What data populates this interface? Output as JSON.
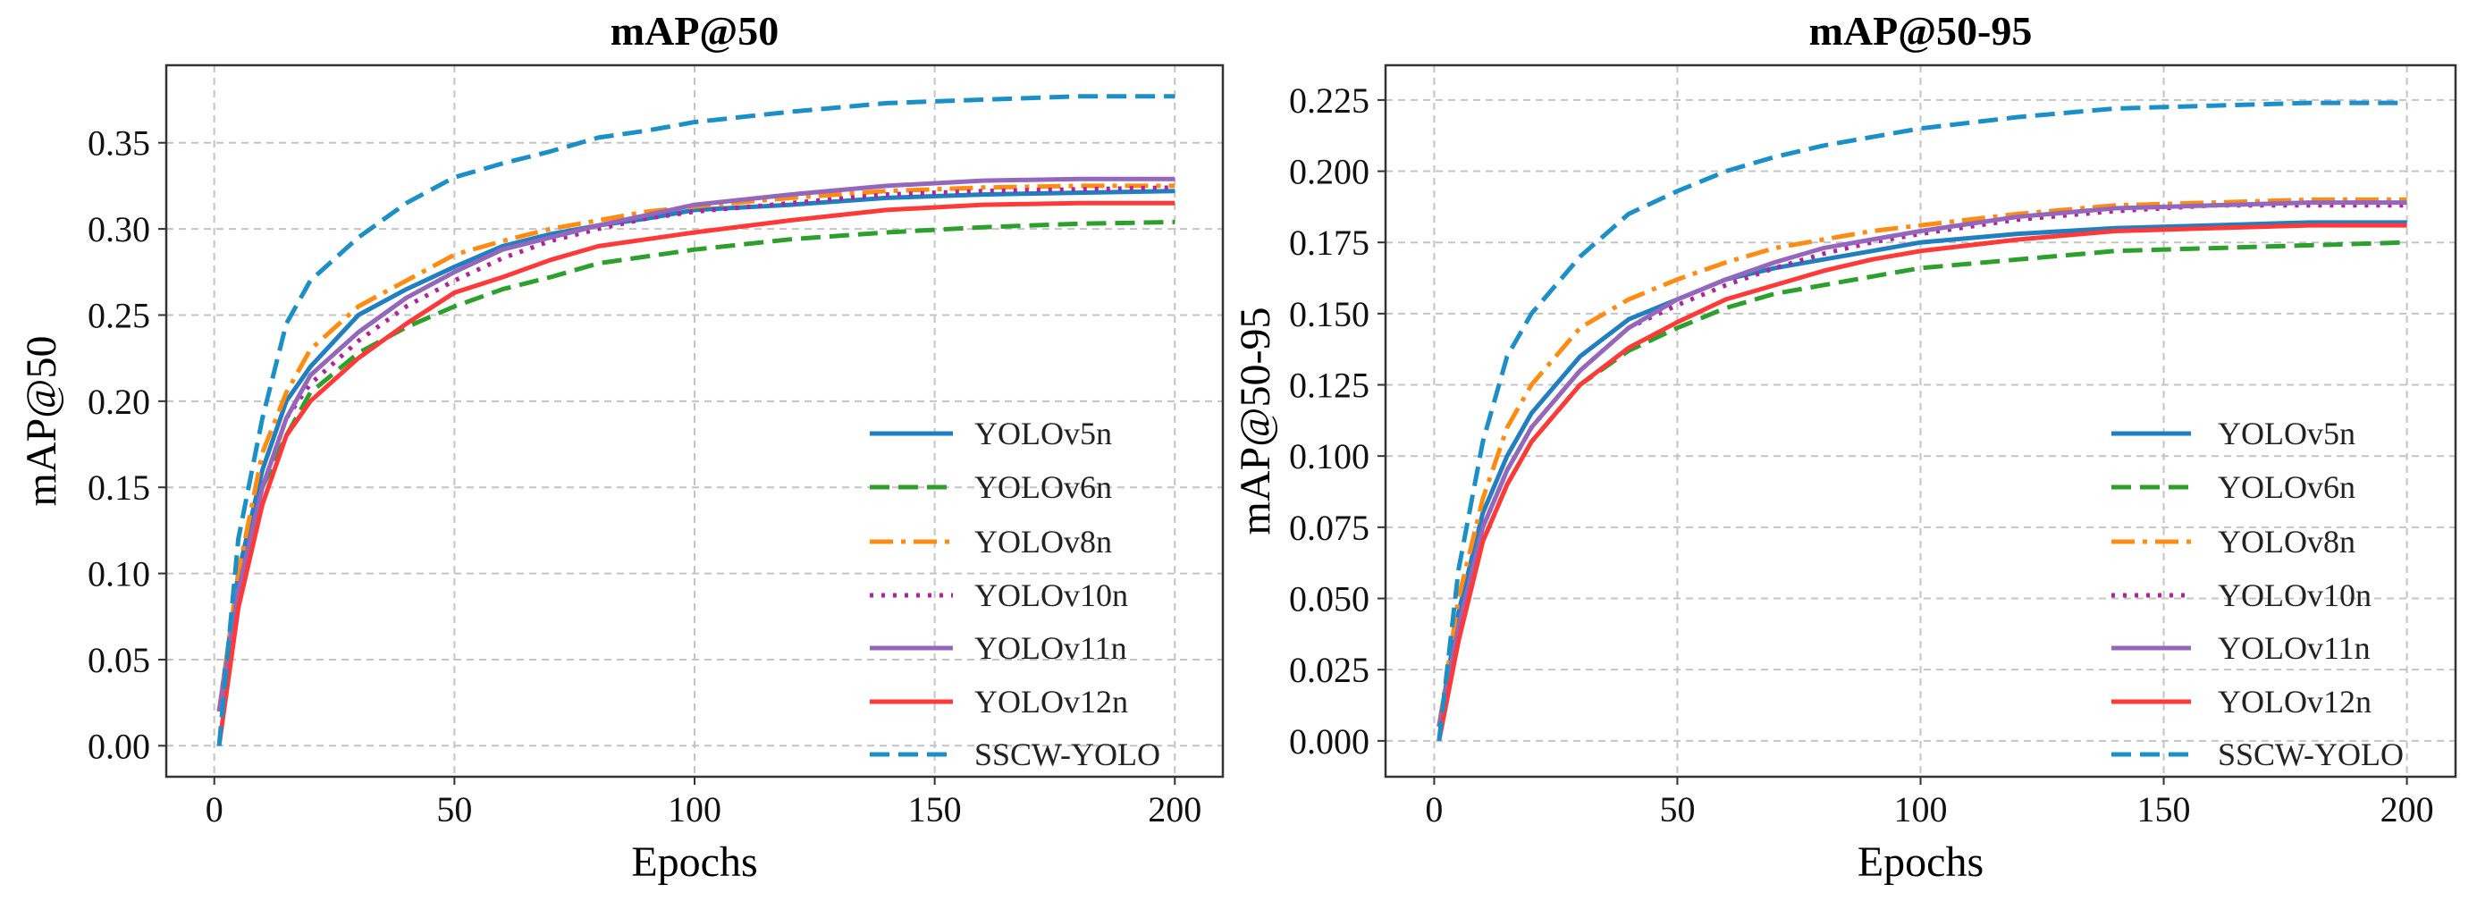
{
  "chart_data": [
    {
      "type": "line",
      "title": "mAP@50",
      "xlabel": "Epochs",
      "ylabel": "mAP@50",
      "xlim": [
        -10,
        210
      ],
      "ylim": [
        -0.018,
        0.395
      ],
      "xticks": [
        0,
        50,
        100,
        150,
        200
      ],
      "xtick_labels": [
        "0",
        "50",
        "100",
        "150",
        "200"
      ],
      "yticks": [
        0,
        0.05,
        0.1,
        0.15,
        0.2,
        0.25,
        0.3,
        0.35
      ],
      "ytick_labels": [
        "0.00",
        "0.05",
        "0.10",
        "0.15",
        "0.20",
        "0.25",
        "0.30",
        "0.35"
      ],
      "grid": true,
      "legend_position": "lower-right",
      "x": [
        1,
        5,
        10,
        15,
        20,
        30,
        40,
        50,
        60,
        70,
        80,
        90,
        100,
        120,
        140,
        160,
        180,
        200
      ],
      "series": [
        {
          "name": "YOLOv5n",
          "color": "#1f7fc0",
          "style": "solid",
          "values": [
            0.02,
            0.1,
            0.16,
            0.2,
            0.22,
            0.25,
            0.265,
            0.278,
            0.29,
            0.297,
            0.302,
            0.306,
            0.311,
            0.314,
            0.318,
            0.32,
            0.321,
            0.322
          ]
        },
        {
          "name": "YOLOv6n",
          "color": "#2ca02c",
          "style": "dashed",
          "values": [
            0.02,
            0.09,
            0.15,
            0.18,
            0.205,
            0.228,
            0.243,
            0.255,
            0.265,
            0.272,
            0.28,
            0.284,
            0.288,
            0.294,
            0.298,
            0.301,
            0.303,
            0.304
          ]
        },
        {
          "name": "YOLOv8n",
          "color": "#ff8c10",
          "style": "dashdot",
          "values": [
            0.02,
            0.1,
            0.17,
            0.205,
            0.23,
            0.255,
            0.27,
            0.285,
            0.293,
            0.3,
            0.305,
            0.31,
            0.313,
            0.318,
            0.322,
            0.324,
            0.325,
            0.325
          ]
        },
        {
          "name": "YOLOv10n",
          "color": "#b0229f",
          "style": "dotted",
          "values": [
            0.02,
            0.09,
            0.15,
            0.19,
            0.21,
            0.235,
            0.255,
            0.27,
            0.283,
            0.293,
            0.3,
            0.306,
            0.31,
            0.315,
            0.32,
            0.322,
            0.323,
            0.324
          ]
        },
        {
          "name": "YOLOv11n",
          "color": "#9467bd",
          "style": "solid",
          "values": [
            0.02,
            0.09,
            0.15,
            0.19,
            0.215,
            0.24,
            0.26,
            0.275,
            0.288,
            0.295,
            0.302,
            0.308,
            0.314,
            0.32,
            0.325,
            0.328,
            0.329,
            0.329
          ]
        },
        {
          "name": "YOLOv12n",
          "color": "#ff3838",
          "style": "solid",
          "values": [
            0.0,
            0.08,
            0.14,
            0.18,
            0.2,
            0.225,
            0.245,
            0.263,
            0.272,
            0.282,
            0.29,
            0.294,
            0.298,
            0.305,
            0.311,
            0.314,
            0.315,
            0.315
          ]
        },
        {
          "name": "SSCW-YOLO",
          "color": "#1a8fc8",
          "style": "dashed",
          "values": [
            0.0,
            0.12,
            0.19,
            0.245,
            0.27,
            0.295,
            0.315,
            0.33,
            0.338,
            0.345,
            0.353,
            0.357,
            0.362,
            0.368,
            0.373,
            0.375,
            0.377,
            0.377
          ]
        }
      ]
    },
    {
      "type": "line",
      "title": "mAP@50-95",
      "xlabel": "Epochs",
      "ylabel": "mAP@50-95",
      "xlim": [
        -10,
        210
      ],
      "ylim": [
        -0.0126,
        0.2372
      ],
      "xticks": [
        0,
        50,
        100,
        150,
        200
      ],
      "xtick_labels": [
        "0",
        "50",
        "100",
        "150",
        "200"
      ],
      "yticks": [
        0,
        0.025,
        0.05,
        0.075,
        0.1,
        0.125,
        0.15,
        0.175,
        0.2,
        0.225
      ],
      "ytick_labels": [
        "0.000",
        "0.025",
        "0.050",
        "0.075",
        "0.100",
        "0.125",
        "0.150",
        "0.175",
        "0.200",
        "0.225"
      ],
      "grid": true,
      "legend_position": "lower-right",
      "x": [
        1,
        5,
        10,
        15,
        20,
        30,
        40,
        50,
        60,
        70,
        80,
        90,
        100,
        120,
        140,
        160,
        180,
        200
      ],
      "series": [
        {
          "name": "YOLOv5n",
          "color": "#1f7fc0",
          "style": "solid",
          "values": [
            0.005,
            0.045,
            0.08,
            0.1,
            0.115,
            0.135,
            0.148,
            0.155,
            0.162,
            0.166,
            0.169,
            0.172,
            0.175,
            0.178,
            0.18,
            0.181,
            0.182,
            0.182
          ]
        },
        {
          "name": "YOLOv6n",
          "color": "#2ca02c",
          "style": "dashed",
          "values": [
            0.005,
            0.04,
            0.07,
            0.09,
            0.105,
            0.125,
            0.137,
            0.145,
            0.152,
            0.157,
            0.16,
            0.163,
            0.166,
            0.169,
            0.172,
            0.173,
            0.174,
            0.175
          ]
        },
        {
          "name": "YOLOv8n",
          "color": "#ff8c10",
          "style": "dashdot",
          "values": [
            0.005,
            0.05,
            0.085,
            0.11,
            0.125,
            0.145,
            0.155,
            0.162,
            0.168,
            0.173,
            0.176,
            0.179,
            0.181,
            0.185,
            0.188,
            0.189,
            0.19,
            0.19
          ]
        },
        {
          "name": "YOLOv10n",
          "color": "#b0229f",
          "style": "dotted",
          "values": [
            0.005,
            0.04,
            0.075,
            0.095,
            0.11,
            0.13,
            0.145,
            0.153,
            0.16,
            0.166,
            0.171,
            0.175,
            0.178,
            0.183,
            0.186,
            0.188,
            0.188,
            0.188
          ]
        },
        {
          "name": "YOLOv11n",
          "color": "#9467bd",
          "style": "solid",
          "values": [
            0.005,
            0.04,
            0.075,
            0.095,
            0.11,
            0.13,
            0.145,
            0.155,
            0.162,
            0.168,
            0.173,
            0.176,
            0.179,
            0.184,
            0.187,
            0.188,
            0.189,
            0.189
          ]
        },
        {
          "name": "YOLOv12n",
          "color": "#ff3838",
          "style": "solid",
          "values": [
            0.0,
            0.035,
            0.07,
            0.09,
            0.105,
            0.125,
            0.138,
            0.147,
            0.155,
            0.16,
            0.165,
            0.169,
            0.172,
            0.176,
            0.179,
            0.18,
            0.181,
            0.181
          ]
        },
        {
          "name": "SSCW-YOLO",
          "color": "#1a8fc8",
          "style": "dashed",
          "values": [
            0.0,
            0.06,
            0.105,
            0.135,
            0.15,
            0.17,
            0.185,
            0.193,
            0.2,
            0.205,
            0.209,
            0.212,
            0.215,
            0.219,
            0.222,
            0.223,
            0.224,
            0.224
          ]
        }
      ]
    }
  ]
}
